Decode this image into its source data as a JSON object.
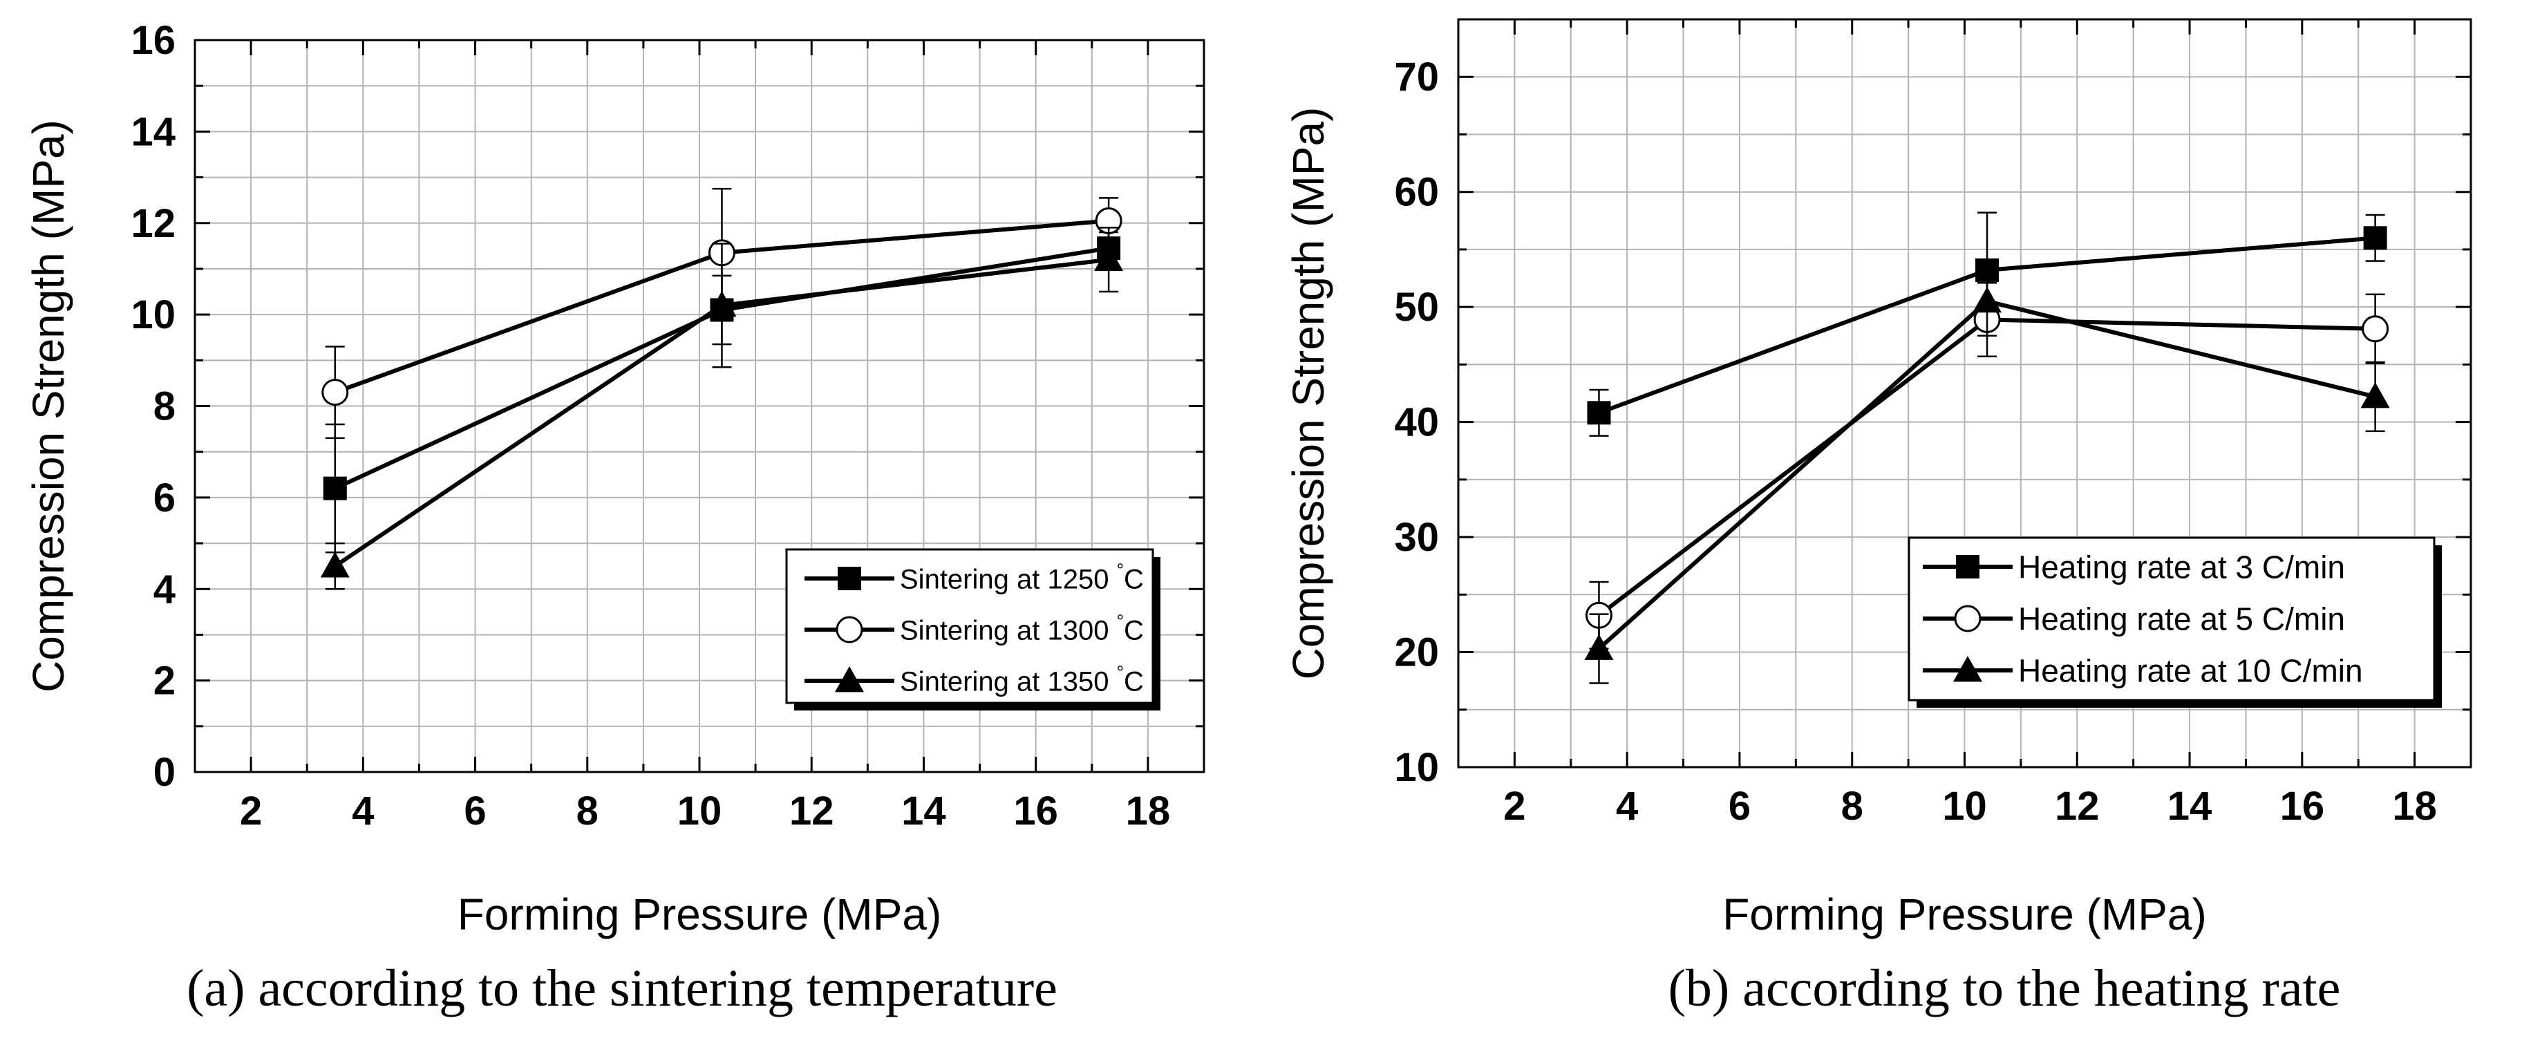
{
  "chart_data": [
    {
      "type": "line",
      "panel_id": "a",
      "title": "",
      "caption": "(a) according to the sintering temperature",
      "xlabel": "Forming Pressure (MPa)",
      "ylabel": "Compression Strength (MPa)",
      "xlim": [
        1,
        19
      ],
      "ylim": [
        0,
        16
      ],
      "xticks": [
        2,
        4,
        6,
        8,
        10,
        12,
        14,
        16,
        18
      ],
      "yticks": [
        0,
        2,
        4,
        6,
        8,
        10,
        12,
        14,
        16
      ],
      "grid": true,
      "legend_position": "bottom-right",
      "series": [
        {
          "name": "Sintering at 1250 ",
          "name_sup": "°",
          "name_suffix": "C",
          "marker": "square",
          "x": [
            3.5,
            10.4,
            17.3
          ],
          "y": [
            6.2,
            10.1,
            11.45
          ],
          "err": [
            1.4,
            0.75,
            0.35
          ]
        },
        {
          "name": "Sintering at 1300 ",
          "name_sup": "°",
          "name_suffix": "C",
          "marker": "circle",
          "x": [
            3.5,
            10.4,
            17.3
          ],
          "y": [
            8.3,
            11.35,
            12.05
          ],
          "err": [
            1.0,
            1.4,
            0.5
          ]
        },
        {
          "name": "Sintering at 1350 ",
          "name_sup": "°",
          "name_suffix": "C",
          "marker": "triangle",
          "x": [
            3.5,
            10.4,
            17.3
          ],
          "y": [
            4.5,
            10.2,
            11.2
          ],
          "err": [
            0.5,
            1.35,
            0.7
          ]
        }
      ]
    },
    {
      "type": "line",
      "panel_id": "b",
      "title": "",
      "caption": "(b) according to the heating rate",
      "xlabel": "Forming Pressure (MPa)",
      "ylabel": "Compression Strength (MPa)",
      "xlim": [
        1,
        19
      ],
      "ylim": [
        10,
        75
      ],
      "xticks": [
        2,
        4,
        6,
        8,
        10,
        12,
        14,
        16,
        18
      ],
      "yticks": [
        10,
        20,
        30,
        40,
        50,
        60,
        70
      ],
      "grid": true,
      "legend_position": "bottom-right",
      "series": [
        {
          "name": "Heating rate at 3 C/min",
          "marker": "square",
          "x": [
            3.5,
            10.4,
            17.3
          ],
          "y": [
            40.8,
            53.2,
            56.0
          ],
          "err": [
            2.0,
            5.0,
            2.0
          ]
        },
        {
          "name": "Heating rate at 5 C/min",
          "marker": "circle",
          "x": [
            3.5,
            10.4,
            17.3
          ],
          "y": [
            23.2,
            48.9,
            48.1
          ],
          "err": [
            2.9,
            3.2,
            3.0
          ]
        },
        {
          "name": "Heating rate at 10 C/min",
          "marker": "triangle",
          "x": [
            3.5,
            10.4,
            17.3
          ],
          "y": [
            20.3,
            50.5,
            42.2
          ],
          "err": [
            3.0,
            3.0,
            3.0
          ]
        }
      ]
    }
  ]
}
